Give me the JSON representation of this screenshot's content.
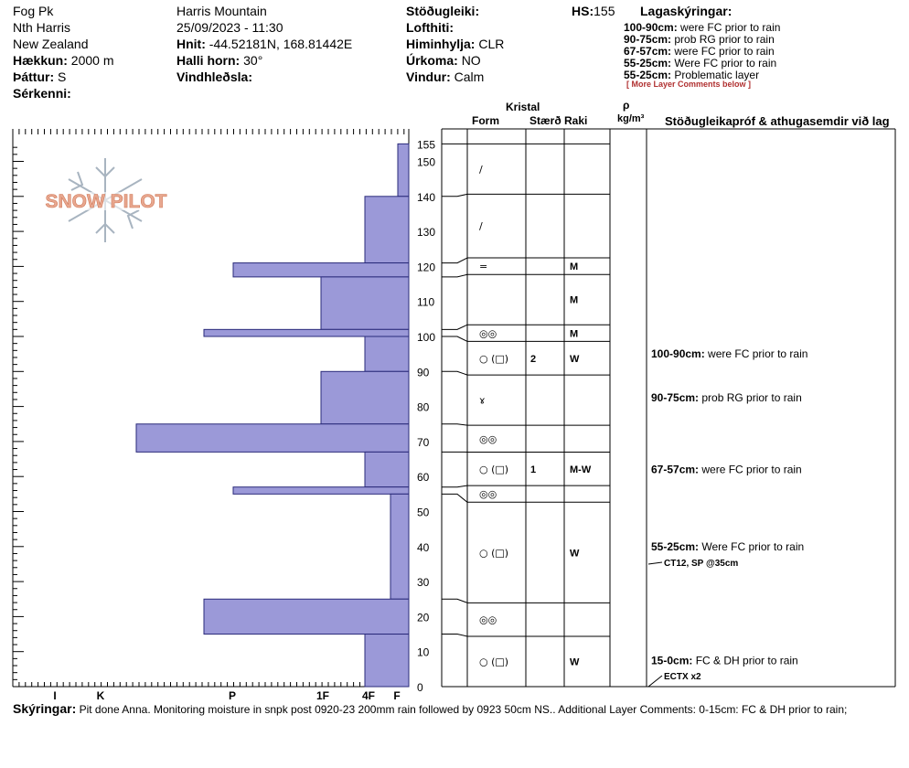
{
  "header": {
    "col1": {
      "location": "Fog Pk",
      "range": "Nth Harris",
      "country": "New Zealand",
      "elevation_label": "Hækkun:",
      "elevation_value": "2000 m",
      "aspect_label": "Þáttur:",
      "aspect_value": "S",
      "specifics_label": "Sérkenni:"
    },
    "col2": {
      "area": "Harris Mountain",
      "datetime": "25/09/2023 - 11:30",
      "coords_label": "Hnit:",
      "coords_value": "-44.52181N, 168.81442E",
      "slope_label": "Halli horn:",
      "slope_value": "30°",
      "wind_loading_label": "Vindhleðsla:"
    },
    "col3": {
      "stability_label": "Stöðugleiki:",
      "air_temp_label": "Lofthiti:",
      "sky_label": "Himinhylja:",
      "sky_value": "CLR",
      "precip_label": "Úrkoma:",
      "precip_value": "NO",
      "wind_label": "Vindur:",
      "wind_value": "Calm"
    },
    "hs_label": "HS:",
    "hs_value": "155",
    "layer_comments_title": "Lagaskýringar:",
    "layer_comments": [
      {
        "range": "100-90cm:",
        "text": "were FC prior to rain"
      },
      {
        "range": "90-75cm:",
        "text": "prob RG prior to rain"
      },
      {
        "range": "67-57cm:",
        "text": "were FC prior to rain"
      },
      {
        "range": "55-25cm:",
        "text": "Were FC prior to rain"
      },
      {
        "range": "55-25cm:",
        "text": "Problematic layer"
      }
    ],
    "more_comments": "[ More Layer Comments below ]"
  },
  "table_headers": {
    "crystal": "Kristal",
    "form": "Form",
    "size": "Stærð",
    "moisture": "Raki",
    "rho": "ρ",
    "density_unit": "kg/m³",
    "tests": "Stöðugleikapróf & athugasemdir við lag"
  },
  "footer": {
    "label": "Skýringar:",
    "text": "Pit done Anna. Monitoring moisture in snpk post 0920-23 200mm rain followed by 0923 50cm NS.. Additional Layer Comments: 0-15cm: FC & DH prior to rain;"
  },
  "logo_text": "SNOW PILOT",
  "colors": {
    "bar_fill": "#9b99d8",
    "bar_stroke": "#2a2a7a",
    "logo": "#e8a890",
    "logo_snowflake": "#a8b4c0"
  },
  "chart_data": {
    "type": "bar",
    "title": "",
    "ylabel": "",
    "xlabel": "",
    "ylim": [
      0,
      160
    ],
    "y_ticks": [
      0,
      10,
      20,
      30,
      40,
      50,
      60,
      70,
      80,
      90,
      100,
      110,
      120,
      130,
      140,
      150,
      155
    ],
    "x_categories": [
      "F",
      "4F",
      "1F",
      "P",
      "K",
      "I"
    ],
    "hardness_scale_note": "hand hardness from right (F) to left (I)",
    "layers": [
      {
        "top": 155,
        "bottom": 140,
        "hardness": "F",
        "form": "/",
        "size": "",
        "moisture": "",
        "comment": ""
      },
      {
        "top": 140,
        "bottom": 121,
        "hardness": "4F",
        "form": "/",
        "size": "",
        "moisture": "",
        "comment": ""
      },
      {
        "top": 121,
        "bottom": 117,
        "hardness": "P-",
        "form": "=",
        "size": "",
        "moisture": "M",
        "comment": ""
      },
      {
        "top": 117,
        "bottom": 102,
        "hardness": "1F",
        "form": "",
        "size": "",
        "moisture": "M",
        "comment": ""
      },
      {
        "top": 102,
        "bottom": 100,
        "hardness": "P+",
        "form": "◎◎",
        "size": "",
        "moisture": "M",
        "comment": ""
      },
      {
        "top": 100,
        "bottom": 90,
        "hardness": "4F",
        "form": "○ (□)",
        "size": "2",
        "moisture": "W",
        "comment_range": "100-90cm:",
        "comment": "were FC prior to rain"
      },
      {
        "top": 90,
        "bottom": 75,
        "hardness": "1F",
        "form": "ɤ",
        "size": "",
        "moisture": "",
        "comment_range": "90-75cm:",
        "comment": "prob RG prior to rain"
      },
      {
        "top": 75,
        "bottom": 67,
        "hardness": "K-",
        "form": "◎◎",
        "size": "",
        "moisture": "",
        "comment": ""
      },
      {
        "top": 67,
        "bottom": 57,
        "hardness": "4F",
        "form": "○ (□)",
        "size": "1",
        "moisture": "M-W",
        "comment_range": "67-57cm:",
        "comment": "were FC prior to rain"
      },
      {
        "top": 57,
        "bottom": 55,
        "hardness": "P-",
        "form": "◎◎",
        "size": "",
        "moisture": "",
        "comment": ""
      },
      {
        "top": 55,
        "bottom": 25,
        "hardness": "F+",
        "form": "○ (□)",
        "size": "",
        "moisture": "W",
        "comment_range": "55-25cm:",
        "comment": "Were FC prior to rain"
      },
      {
        "top": 25,
        "bottom": 15,
        "hardness": "P+",
        "form": "◎◎",
        "size": "",
        "moisture": "",
        "comment": ""
      },
      {
        "top": 15,
        "bottom": 0,
        "hardness": "4F",
        "form": "○ (□)",
        "size": "",
        "moisture": "W",
        "comment_range": "15-0cm:",
        "comment": "FC & DH prior to rain"
      }
    ],
    "stability_tests": [
      {
        "depth": 35,
        "text": "CT12, SP @35cm"
      },
      {
        "depth": 0,
        "text": "ECTX  x2"
      }
    ]
  }
}
